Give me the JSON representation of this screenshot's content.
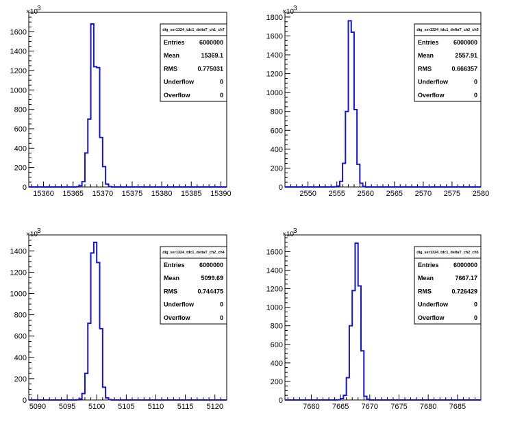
{
  "chart_data": [
    {
      "type": "histogram",
      "title": "dig_ser1324_tdc1_deltaT_ch1_ch7",
      "y_multiplier": "×10",
      "y_exponent": "3",
      "xlim": [
        15357.5,
        15391
      ],
      "ylim": [
        0,
        1800
      ],
      "x_ticks": [
        15360,
        15365,
        15370,
        15375,
        15380,
        15385,
        15390
      ],
      "y_ticks": [
        0,
        200,
        400,
        600,
        800,
        1000,
        1200,
        1400,
        1600
      ],
      "bin_edges": [
        15365.0,
        15365.5,
        15366.0,
        15366.5,
        15367.0,
        15367.5,
        15368.0,
        15368.5,
        15369.0,
        15369.5,
        15370.0,
        15370.5,
        15371.0,
        15371.5,
        15372.0
      ],
      "bin_values": [
        0,
        2,
        12,
        55,
        350,
        700,
        1680,
        1240,
        1230,
        510,
        210,
        30,
        4,
        0
      ],
      "stats": [
        {
          "label": "Entries",
          "value": "6000000"
        },
        {
          "label": "Mean",
          "value": "15369.1"
        },
        {
          "label": "RMS",
          "value": "0.775031"
        },
        {
          "label": "Underflow",
          "value": "0"
        },
        {
          "label": "Overflow",
          "value": "0"
        }
      ]
    },
    {
      "type": "histogram",
      "title": "dig_ser1324_tdc1_deltaT_ch2_ch3",
      "y_multiplier": "×10",
      "y_exponent": "3",
      "xlim": [
        2546,
        2580
      ],
      "ylim": [
        0,
        1850
      ],
      "x_ticks": [
        2550,
        2555,
        2560,
        2565,
        2570,
        2575,
        2580
      ],
      "y_ticks": [
        0,
        200,
        400,
        600,
        800,
        1000,
        1200,
        1400,
        1600,
        1800
      ],
      "bin_edges": [
        2554.0,
        2554.5,
        2555.0,
        2555.5,
        2556.0,
        2556.5,
        2557.0,
        2557.5,
        2558.0,
        2558.5,
        2559.0,
        2559.5,
        2560.0,
        2560.5,
        2561.0
      ],
      "bin_values": [
        0,
        2,
        10,
        60,
        250,
        800,
        1760,
        1640,
        820,
        240,
        40,
        5,
        0,
        0
      ],
      "stats": [
        {
          "label": "Entries",
          "value": "6000000"
        },
        {
          "label": "Mean",
          "value": "2557.91"
        },
        {
          "label": "RMS",
          "value": "0.666357"
        },
        {
          "label": "Underflow",
          "value": "0"
        },
        {
          "label": "Overflow",
          "value": "0"
        }
      ]
    },
    {
      "type": "histogram",
      "title": "dig_ser1324_tdc1_deltaT_ch2_ch4",
      "y_multiplier": "×10",
      "y_exponent": "3",
      "xlim": [
        5088.5,
        5122
      ],
      "ylim": [
        0,
        1550
      ],
      "x_ticks": [
        5090,
        5095,
        5100,
        5105,
        5110,
        5115,
        5120
      ],
      "y_ticks": [
        0,
        200,
        400,
        600,
        800,
        1000,
        1200,
        1400
      ],
      "bin_edges": [
        5096.0,
        5096.5,
        5097.0,
        5097.5,
        5098.0,
        5098.5,
        5099.0,
        5099.5,
        5100.0,
        5100.5,
        5101.0,
        5101.5,
        5102.0,
        5102.5,
        5103.0
      ],
      "bin_values": [
        0,
        2,
        10,
        60,
        250,
        720,
        1380,
        1480,
        1290,
        670,
        120,
        20,
        3,
        0
      ],
      "stats": [
        {
          "label": "Entries",
          "value": "6000000"
        },
        {
          "label": "Mean",
          "value": "5099.69"
        },
        {
          "label": "RMS",
          "value": "0.744475"
        },
        {
          "label": "Underflow",
          "value": "0"
        },
        {
          "label": "Overflow",
          "value": "0"
        }
      ]
    },
    {
      "type": "histogram",
      "title": "dig_ser1324_tdc1_deltaT_ch2_ch5",
      "y_multiplier": "×10",
      "y_exponent": "3",
      "xlim": [
        7655.5,
        7689
      ],
      "ylim": [
        0,
        1780
      ],
      "x_ticks": [
        7660,
        7665,
        7670,
        7675,
        7680,
        7685
      ],
      "y_ticks": [
        0,
        200,
        400,
        600,
        800,
        1000,
        1200,
        1400,
        1600
      ],
      "bin_edges": [
        7664.0,
        7664.5,
        7665.0,
        7665.5,
        7666.0,
        7666.5,
        7667.0,
        7667.5,
        7668.0,
        7668.5,
        7669.0,
        7669.5,
        7670.0,
        7670.5,
        7671.0
      ],
      "bin_values": [
        0,
        2,
        15,
        50,
        240,
        800,
        1180,
        1690,
        1230,
        530,
        40,
        8,
        0,
        0
      ],
      "stats": [
        {
          "label": "Entries",
          "value": "6000000"
        },
        {
          "label": "Mean",
          "value": "7667.17"
        },
        {
          "label": "RMS",
          "value": "0.726429"
        },
        {
          "label": "Underflow",
          "value": "0"
        },
        {
          "label": "Overflow",
          "value": "0"
        }
      ]
    }
  ]
}
